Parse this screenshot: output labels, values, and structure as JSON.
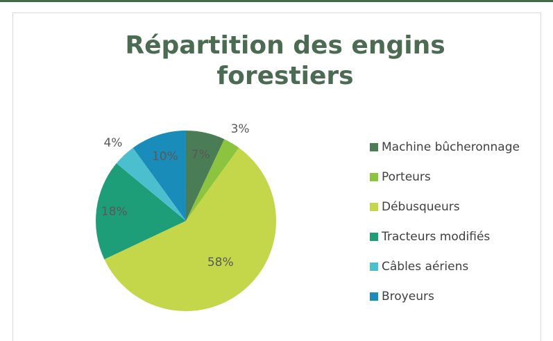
{
  "chart_data": {
    "type": "pie",
    "title": "Répartition des engins forestiers",
    "categories": [
      "Machine bûcheronnage",
      "Porteurs",
      "Débusqueurs",
      "Tracteurs modifiés",
      "Câbles aériens",
      "Broyeurs"
    ],
    "values": [
      7,
      3,
      58,
      18,
      4,
      10
    ],
    "value_labels": [
      "7%",
      "3%",
      "58%",
      "18%",
      "4%",
      "10%"
    ],
    "colors": [
      "#4a7d55",
      "#8cc43f",
      "#c4d64a",
      "#1d9e78",
      "#4cbfcf",
      "#1a8cba"
    ],
    "legend": "right"
  }
}
